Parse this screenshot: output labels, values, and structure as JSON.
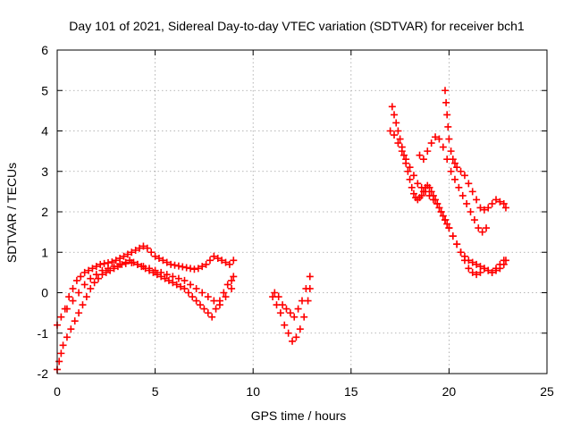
{
  "chart_data": {
    "type": "scatter",
    "title": "Day 101 of 2021, Sidereal Day-to-day VTEC variation (SDTVAR) for receiver bch1",
    "xlabel": "GPS time / hours",
    "ylabel": "SDTVAR / TECUs",
    "xlim": [
      0,
      25
    ],
    "ylim": [
      -2,
      6
    ],
    "xticks": [
      "0",
      "5",
      "10",
      "15",
      "20",
      "25"
    ],
    "yticks": [
      "-2",
      "-1",
      "0",
      "1",
      "2",
      "3",
      "4",
      "5",
      "6"
    ],
    "grid": true,
    "marker": "plus",
    "series_color": "#ff0000",
    "series": [
      {
        "x": [
          0.0,
          0.1,
          0.2,
          0.3,
          0.5,
          0.7,
          0.9,
          1.1,
          1.3,
          1.5,
          1.7,
          1.9,
          2.1,
          2.3,
          2.5,
          2.7,
          2.9,
          3.1,
          3.3,
          3.5,
          3.7,
          3.9,
          4.1,
          4.3,
          4.5,
          4.7,
          4.9,
          5.1,
          5.3,
          5.5,
          5.7,
          5.9,
          6.1,
          6.3,
          6.5,
          6.7,
          6.9,
          7.1,
          7.3,
          7.5,
          7.7,
          7.9,
          8.1,
          8.3,
          8.5,
          8.7,
          8.9,
          9.0
        ],
        "y": [
          -1.9,
          -1.7,
          -1.5,
          -1.3,
          -1.1,
          -0.9,
          -0.7,
          -0.5,
          -0.3,
          -0.1,
          0.1,
          0.25,
          0.35,
          0.45,
          0.5,
          0.55,
          0.6,
          0.65,
          0.7,
          0.75,
          0.8,
          0.75,
          0.7,
          0.65,
          0.6,
          0.55,
          0.5,
          0.45,
          0.4,
          0.35,
          0.3,
          0.25,
          0.2,
          0.15,
          0.1,
          0.0,
          -0.1,
          -0.2,
          -0.3,
          -0.4,
          -0.5,
          -0.6,
          -0.4,
          -0.2,
          0.0,
          0.2,
          0.3,
          0.4
        ]
      },
      {
        "x": [
          0.0,
          0.2,
          0.4,
          0.6,
          0.8,
          1.0,
          1.2,
          1.4,
          1.6,
          1.8,
          2.0,
          2.2,
          2.4,
          2.6,
          2.8,
          3.0,
          3.2,
          3.4,
          3.6,
          3.8,
          4.0,
          4.2,
          4.4,
          4.6,
          4.8,
          5.0,
          5.2,
          5.4,
          5.6,
          5.8,
          6.0,
          6.2,
          6.4,
          6.6,
          6.8,
          7.0,
          7.2,
          7.4,
          7.6,
          7.8,
          8.0,
          8.2,
          8.4,
          8.6,
          8.8,
          9.0
        ],
        "y": [
          -0.8,
          -0.6,
          -0.4,
          -0.1,
          0.1,
          0.3,
          0.4,
          0.5,
          0.55,
          0.6,
          0.65,
          0.7,
          0.72,
          0.74,
          0.76,
          0.8,
          0.85,
          0.9,
          0.95,
          1.0,
          1.05,
          1.1,
          1.15,
          1.1,
          1.0,
          0.9,
          0.85,
          0.8,
          0.75,
          0.7,
          0.68,
          0.66,
          0.64,
          0.62,
          0.6,
          0.58,
          0.6,
          0.65,
          0.7,
          0.8,
          0.9,
          0.85,
          0.8,
          0.75,
          0.7,
          0.8
        ]
      },
      {
        "x": [
          0.5,
          0.8,
          1.1,
          1.4,
          1.7,
          2.0,
          2.3,
          2.6,
          2.9,
          3.2,
          3.5,
          3.8,
          4.1,
          4.4,
          4.7,
          5.0,
          5.3,
          5.6,
          5.9,
          6.2,
          6.5,
          6.8,
          7.1,
          7.4,
          7.7,
          8.0,
          8.3,
          8.6,
          8.9
        ],
        "y": [
          -0.4,
          -0.2,
          0.0,
          0.2,
          0.35,
          0.45,
          0.55,
          0.6,
          0.65,
          0.7,
          0.72,
          0.74,
          0.7,
          0.65,
          0.6,
          0.55,
          0.5,
          0.45,
          0.4,
          0.35,
          0.3,
          0.2,
          0.1,
          0.0,
          -0.1,
          -0.2,
          -0.3,
          -0.1,
          0.1
        ]
      },
      {
        "x": [
          11.0,
          11.2,
          11.4,
          11.6,
          11.8,
          12.0,
          12.2,
          12.4,
          12.6,
          12.8,
          12.9
        ],
        "y": [
          -0.1,
          -0.3,
          -0.5,
          -0.8,
          -1.0,
          -1.2,
          -1.1,
          -0.9,
          -0.6,
          -0.2,
          0.1
        ]
      },
      {
        "x": [
          11.1,
          11.3,
          11.5,
          11.7,
          11.9,
          12.1,
          12.3,
          12.5,
          12.7,
          12.9
        ],
        "y": [
          0.0,
          -0.1,
          -0.3,
          -0.4,
          -0.5,
          -0.6,
          -0.4,
          -0.2,
          0.1,
          0.4
        ]
      },
      {
        "x": [
          17.1,
          17.2,
          17.3,
          17.4,
          17.5,
          17.6,
          17.7,
          17.8,
          17.9,
          18.0,
          18.1,
          18.2,
          18.3,
          18.4,
          18.5,
          18.6,
          18.7,
          18.8,
          18.9,
          19.0,
          19.1,
          19.2,
          19.3,
          19.4,
          19.5,
          19.6,
          19.7,
          19.8,
          19.9,
          20.0,
          20.2,
          20.4,
          20.6,
          20.8,
          21.0,
          21.2,
          21.4,
          21.6,
          21.8,
          22.0,
          22.2,
          22.4,
          22.6,
          22.8,
          22.9
        ],
        "y": [
          4.6,
          4.4,
          4.2,
          4.0,
          3.8,
          3.6,
          3.4,
          3.2,
          3.0,
          2.8,
          2.6,
          2.45,
          2.35,
          2.3,
          2.35,
          2.4,
          2.5,
          2.6,
          2.65,
          2.6,
          2.5,
          2.4,
          2.3,
          2.2,
          2.1,
          2.0,
          1.9,
          1.8,
          1.7,
          1.6,
          1.4,
          1.2,
          1.0,
          0.9,
          0.8,
          0.75,
          0.7,
          0.65,
          0.6,
          0.55,
          0.5,
          0.55,
          0.6,
          0.7,
          0.8
        ]
      },
      {
        "x": [
          17.0,
          17.2,
          17.4,
          17.6,
          17.8,
          18.0,
          18.2,
          18.4,
          18.6,
          18.8,
          19.0,
          19.2,
          19.4,
          19.6,
          19.8,
          20.0,
          20.2,
          20.4,
          20.6,
          20.8,
          21.0,
          21.2,
          21.4,
          21.6,
          21.8,
          22.0,
          22.2,
          22.4,
          22.6,
          22.8
        ],
        "y": [
          4.0,
          3.9,
          3.7,
          3.5,
          3.3,
          3.1,
          2.9,
          2.7,
          2.6,
          2.5,
          2.4,
          2.3,
          2.2,
          2.0,
          1.8,
          1.6,
          1.4,
          1.2,
          1.0,
          0.8,
          0.6,
          0.5,
          0.45,
          0.5,
          0.6,
          0.55,
          0.5,
          0.6,
          0.7,
          0.8
        ]
      },
      {
        "x": [
          18.5,
          18.7,
          18.9,
          19.1,
          19.3,
          19.5,
          19.7,
          19.9,
          20.1,
          20.3,
          20.5,
          20.7,
          20.9,
          21.1,
          21.3,
          21.5,
          21.7,
          21.9
        ],
        "y": [
          3.4,
          3.3,
          3.5,
          3.7,
          3.85,
          3.8,
          3.6,
          3.3,
          3.0,
          2.8,
          2.6,
          2.4,
          2.2,
          2.0,
          1.8,
          1.6,
          1.5,
          1.6
        ]
      },
      {
        "x": [
          19.8,
          19.85,
          19.9,
          19.95,
          20.0,
          20.1,
          20.2,
          20.3,
          20.4,
          20.6,
          20.8,
          21.0,
          21.2,
          21.4,
          21.6,
          21.8,
          22.0,
          22.2,
          22.4,
          22.6,
          22.8,
          22.9
        ],
        "y": [
          5.0,
          4.7,
          4.4,
          4.1,
          3.8,
          3.5,
          3.3,
          3.2,
          3.1,
          3.0,
          2.9,
          2.7,
          2.5,
          2.3,
          2.1,
          2.05,
          2.1,
          2.2,
          2.3,
          2.25,
          2.2,
          2.1
        ]
      }
    ]
  }
}
